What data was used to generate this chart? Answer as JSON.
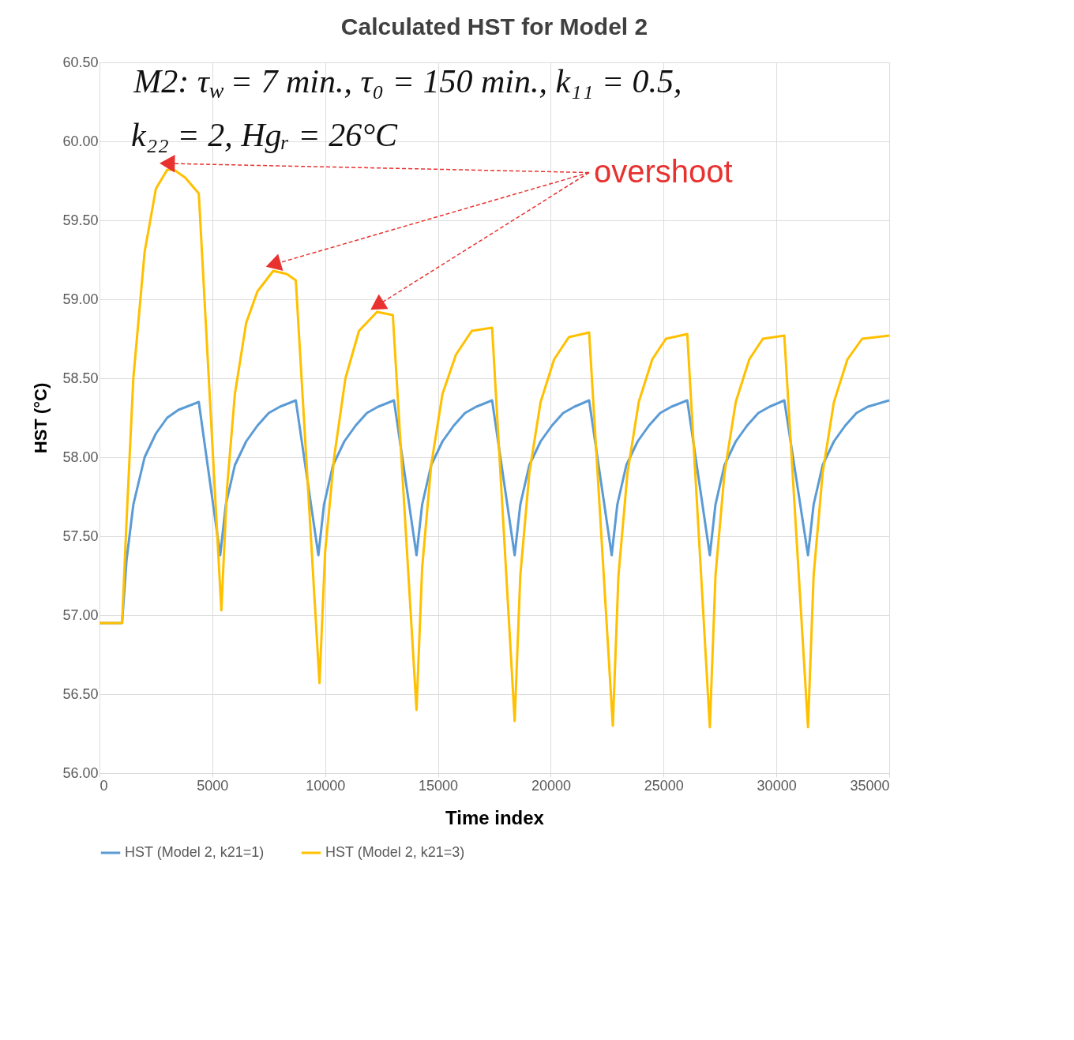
{
  "chart_data": {
    "type": "line",
    "title": "Calculated HST for Model 2",
    "xlabel": "Time index",
    "ylabel": "HST (°C)",
    "xlim": [
      0,
      35000
    ],
    "xticks": [
      0,
      5000,
      10000,
      15000,
      20000,
      25000,
      30000,
      35000
    ],
    "ylim": [
      56,
      60.5
    ],
    "yticks": [
      {
        "value": 56,
        "label": "56.00"
      },
      {
        "value": 56.5,
        "label": "56.50"
      },
      {
        "value": 57,
        "label": "57.00"
      },
      {
        "value": 57.5,
        "label": "57.50"
      },
      {
        "value": 58,
        "label": "58.00"
      },
      {
        "value": 58.5,
        "label": "58.50"
      },
      {
        "value": 59,
        "label": "59.00"
      },
      {
        "value": 59.5,
        "label": "59.50"
      },
      {
        "value": 60,
        "label": "60.00"
      },
      {
        "value": 60.5,
        "label": "60.50"
      }
    ],
    "grid": true,
    "legend": "bottom",
    "marker": "none",
    "line_style": "solid",
    "annotations": [
      "M2: τ$_{w}$ = 7 min., τ₀ = 150 min., k₁₁ = 0.5,",
      "k₂₂ = 2, Hgᵣ = 26°C",
      "overshoot"
    ],
    "series": [
      {
        "name": "HST (Model 2, k21=1)",
        "color": "#5b9bd5",
        "x": [
          0,
          1000,
          1200,
          1500,
          2000,
          2500,
          3000,
          3500,
          4400,
          5350,
          5600,
          6000,
          6500,
          7000,
          7500,
          8000,
          8700,
          9700,
          9950,
          10350,
          10850,
          11350,
          11850,
          12350,
          13050,
          14050,
          14300,
          14700,
          15200,
          15700,
          16200,
          16700,
          17400,
          18400,
          18650,
          19050,
          19550,
          20050,
          20550,
          21050,
          21700,
          22700,
          22950,
          23350,
          23850,
          24350,
          24850,
          25350,
          26050,
          27050,
          27300,
          27700,
          28200,
          28700,
          29200,
          29700,
          30350,
          31400,
          31650,
          32050,
          32550,
          33050,
          33550,
          34050,
          35000
        ],
        "values": [
          56.95,
          56.95,
          57.35,
          57.7,
          58.0,
          58.15,
          58.25,
          58.3,
          58.35,
          57.38,
          57.7,
          57.95,
          58.1,
          58.2,
          58.28,
          58.32,
          58.36,
          57.38,
          57.7,
          57.95,
          58.1,
          58.2,
          58.28,
          58.32,
          58.36,
          57.38,
          57.7,
          57.95,
          58.1,
          58.2,
          58.28,
          58.32,
          58.36,
          57.38,
          57.7,
          57.95,
          58.1,
          58.2,
          58.28,
          58.32,
          58.36,
          57.38,
          57.7,
          57.95,
          58.1,
          58.2,
          58.28,
          58.32,
          58.36,
          57.38,
          57.7,
          57.95,
          58.1,
          58.2,
          58.28,
          58.32,
          58.36,
          57.38,
          57.7,
          57.95,
          58.1,
          58.2,
          58.28,
          58.32,
          58.36
        ]
      },
      {
        "name": "HST (Model 2, k21=3)",
        "color": "#ffc000",
        "x": [
          0,
          1000,
          1200,
          1500,
          2000,
          2500,
          3000,
          3300,
          3800,
          4400,
          5400,
          5650,
          6000,
          6500,
          7000,
          7700,
          8300,
          8700,
          9750,
          10000,
          10400,
          10900,
          11500,
          12300,
          13000,
          14050,
          14300,
          14700,
          15200,
          15800,
          16500,
          17400,
          18400,
          18650,
          19050,
          19550,
          20150,
          20800,
          21700,
          22750,
          23000,
          23400,
          23900,
          24500,
          25100,
          26050,
          27050,
          27300,
          27700,
          28200,
          28800,
          29400,
          30350,
          31400,
          31650,
          32050,
          32550,
          33150,
          33800,
          35000
        ],
        "values": [
          56.95,
          56.95,
          57.6,
          58.5,
          59.3,
          59.7,
          59.82,
          59.82,
          59.77,
          59.67,
          57.03,
          57.8,
          58.4,
          58.85,
          59.05,
          59.18,
          59.16,
          59.12,
          56.57,
          57.4,
          58.0,
          58.5,
          58.8,
          58.92,
          58.9,
          56.4,
          57.3,
          57.95,
          58.4,
          58.65,
          58.8,
          58.82,
          56.33,
          57.25,
          57.9,
          58.35,
          58.62,
          58.76,
          58.79,
          56.3,
          57.25,
          57.9,
          58.35,
          58.62,
          58.75,
          58.78,
          56.29,
          57.25,
          57.9,
          58.35,
          58.62,
          58.75,
          58.77,
          56.29,
          57.25,
          57.9,
          58.35,
          58.62,
          58.75,
          58.77
        ]
      }
    ]
  }
}
